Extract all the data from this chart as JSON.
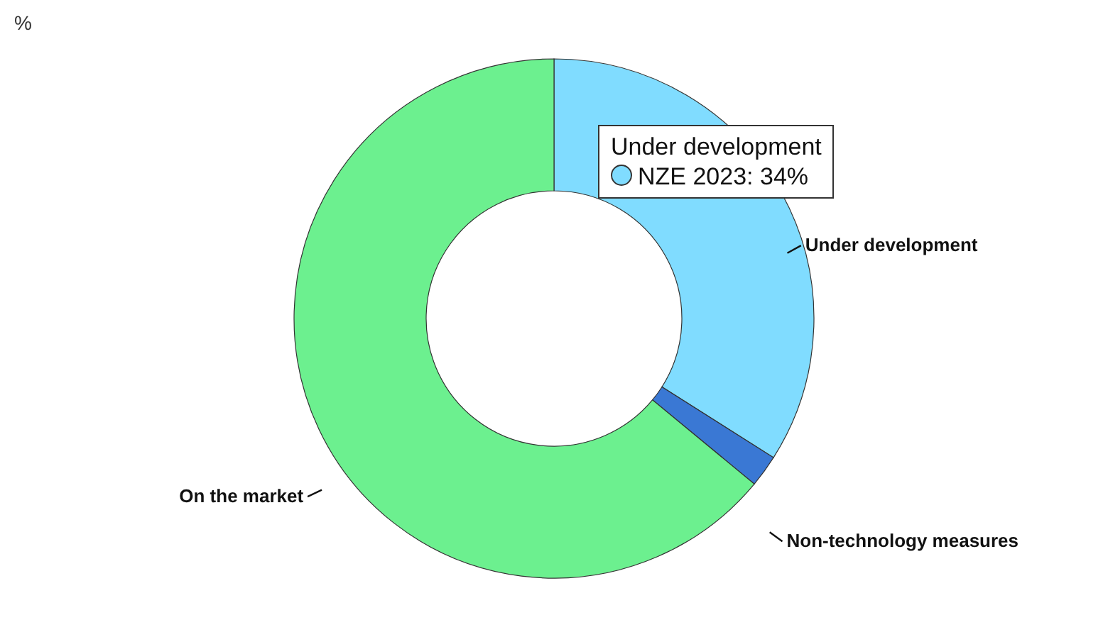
{
  "chart_data": {
    "type": "donut",
    "subtitle": "%",
    "categories": [
      "Under development",
      "Non-technology measures",
      "On the market"
    ],
    "values": [
      34,
      2,
      64
    ],
    "colors": [
      "#80dcff",
      "#3a78d4",
      "#6cf08f"
    ],
    "annotations": [
      "Under development",
      "NZE 2023: 34%"
    ]
  }
}
